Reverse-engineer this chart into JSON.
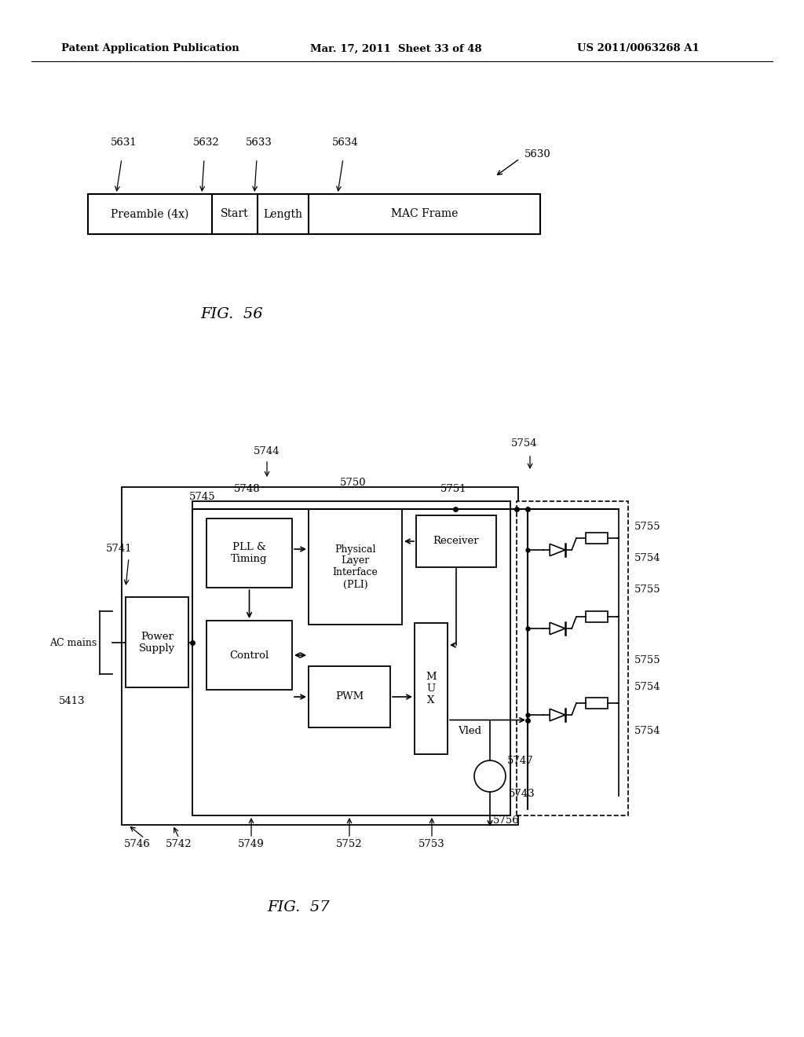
{
  "bg_color": "#ffffff",
  "header_left": "Patent Application Publication",
  "header_mid": "Mar. 17, 2011  Sheet 33 of 48",
  "header_right": "US 2011/0063268 A1",
  "fig56_title": "FIG.  56",
  "fig57_title": "FIG.  57",
  "frame_fields": [
    "Preamble (4x)",
    "Start",
    "Length",
    "MAC Frame"
  ],
  "frame_field_ref": [
    "5631",
    "5632",
    "5633",
    "5634"
  ]
}
